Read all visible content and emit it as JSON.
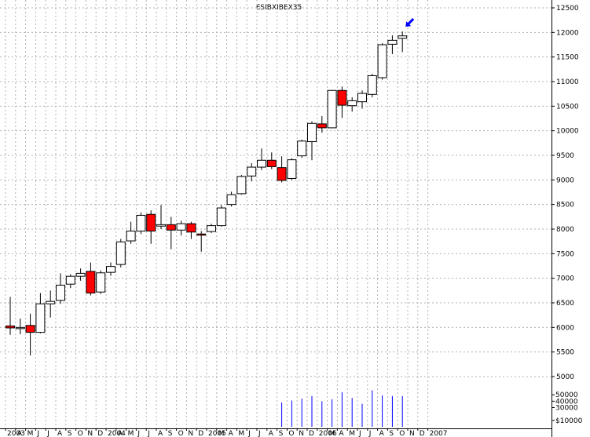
{
  "chart_data": {
    "type": "candlestick",
    "title": "ESIBXIBEX35",
    "colors": {
      "up_fill": "#ffffff",
      "down_fill": "#ff0000",
      "outline": "#000000",
      "grid": "#b0b0b0",
      "volume": "#0000ff",
      "marker": "#0000ff"
    },
    "grid": true,
    "y_axis": {
      "position": "right",
      "range": [
        5000,
        12500
      ],
      "ticks": [
        5000,
        5500,
        6000,
        6500,
        7000,
        7500,
        8000,
        8500,
        9000,
        9500,
        10000,
        10500,
        11000,
        11500,
        12000,
        12500
      ]
    },
    "volume_axis": {
      "range": [
        0,
        60000
      ],
      "ticks": [
        10000,
        30000,
        40000,
        50000
      ],
      "tick_labels": [
        "$10000",
        "30000",
        "40000",
        "50000"
      ]
    },
    "x_labels": [
      "2003",
      "A",
      "M",
      "J",
      "J",
      "A",
      "S",
      "O",
      "N",
      "D",
      "2004",
      "A",
      "M",
      "J",
      "J",
      "A",
      "S",
      "O",
      "N",
      "D",
      "2005",
      "M",
      "A",
      "M",
      "J",
      "J",
      "A",
      "S",
      "O",
      "N",
      "D",
      "2006",
      "M",
      "A",
      "M",
      "J",
      "J",
      "A",
      "S",
      "O",
      "N",
      "D",
      "2007"
    ],
    "candles": [
      {
        "o": 6030,
        "h": 6620,
        "l": 5850,
        "c": 5990
      },
      {
        "o": 5990,
        "h": 6180,
        "l": 5860,
        "c": 6000
      },
      {
        "o": 6040,
        "h": 6280,
        "l": 5430,
        "c": 5900
      },
      {
        "o": 5900,
        "h": 6700,
        "l": 5880,
        "c": 6480
      },
      {
        "o": 6480,
        "h": 6750,
        "l": 6200,
        "c": 6530
      },
      {
        "o": 6550,
        "h": 7100,
        "l": 6480,
        "c": 6860
      },
      {
        "o": 6880,
        "h": 7080,
        "l": 6800,
        "c": 7040
      },
      {
        "o": 7040,
        "h": 7200,
        "l": 6950,
        "c": 7100
      },
      {
        "o": 7140,
        "h": 7320,
        "l": 6650,
        "c": 6700
      },
      {
        "o": 6720,
        "h": 7160,
        "l": 6680,
        "c": 7110
      },
      {
        "o": 7120,
        "h": 7320,
        "l": 7050,
        "c": 7240
      },
      {
        "o": 7280,
        "h": 7800,
        "l": 7220,
        "c": 7740
      },
      {
        "o": 7760,
        "h": 8150,
        "l": 7700,
        "c": 7960
      },
      {
        "o": 7960,
        "h": 8340,
        "l": 7900,
        "c": 8280
      },
      {
        "o": 8300,
        "h": 8380,
        "l": 7700,
        "c": 7960
      },
      {
        "o": 8060,
        "h": 8490,
        "l": 8000,
        "c": 8090
      },
      {
        "o": 8090,
        "h": 8250,
        "l": 7590,
        "c": 7980
      },
      {
        "o": 7980,
        "h": 8170,
        "l": 7870,
        "c": 8110
      },
      {
        "o": 8110,
        "h": 8150,
        "l": 7800,
        "c": 7940
      },
      {
        "o": 7900,
        "h": 7960,
        "l": 7540,
        "c": 7880
      },
      {
        "o": 7950,
        "h": 8110,
        "l": 7920,
        "c": 8070
      },
      {
        "o": 8070,
        "h": 8490,
        "l": 8050,
        "c": 8430
      },
      {
        "o": 8500,
        "h": 8760,
        "l": 8460,
        "c": 8700
      },
      {
        "o": 8720,
        "h": 9100,
        "l": 8700,
        "c": 9070
      },
      {
        "o": 9080,
        "h": 9340,
        "l": 8970,
        "c": 9260
      },
      {
        "o": 9260,
        "h": 9640,
        "l": 9200,
        "c": 9400
      },
      {
        "o": 9400,
        "h": 9560,
        "l": 9220,
        "c": 9270
      },
      {
        "o": 9250,
        "h": 9480,
        "l": 8950,
        "c": 8990
      },
      {
        "o": 9030,
        "h": 9440,
        "l": 9000,
        "c": 9410
      },
      {
        "o": 9490,
        "h": 9820,
        "l": 9450,
        "c": 9790
      },
      {
        "o": 9780,
        "h": 10190,
        "l": 9400,
        "c": 10150
      },
      {
        "o": 10140,
        "h": 10300,
        "l": 9960,
        "c": 10060
      },
      {
        "o": 10060,
        "h": 10830,
        "l": 10050,
        "c": 10820
      },
      {
        "o": 10820,
        "h": 10900,
        "l": 10260,
        "c": 10520
      },
      {
        "o": 10510,
        "h": 10680,
        "l": 10390,
        "c": 10610
      },
      {
        "o": 10590,
        "h": 10820,
        "l": 10450,
        "c": 10760
      },
      {
        "o": 10740,
        "h": 11160,
        "l": 10680,
        "c": 11120
      },
      {
        "o": 11080,
        "h": 11780,
        "l": 11040,
        "c": 11750
      },
      {
        "o": 11760,
        "h": 11940,
        "l": 11560,
        "c": 11840
      },
      {
        "o": 11880,
        "h": 12020,
        "l": 11600,
        "c": 11930
      }
    ],
    "volumes": [
      0,
      0,
      0,
      0,
      0,
      0,
      0,
      0,
      0,
      0,
      0,
      0,
      0,
      0,
      0,
      0,
      0,
      0,
      0,
      0,
      0,
      0,
      0,
      0,
      0,
      0,
      0,
      38000,
      41000,
      44000,
      48000,
      40000,
      43000,
      54000,
      45000,
      36000,
      57000,
      49000,
      48000,
      48000
    ],
    "annotation": {
      "type": "arrow",
      "target_candle_index": 39
    }
  }
}
